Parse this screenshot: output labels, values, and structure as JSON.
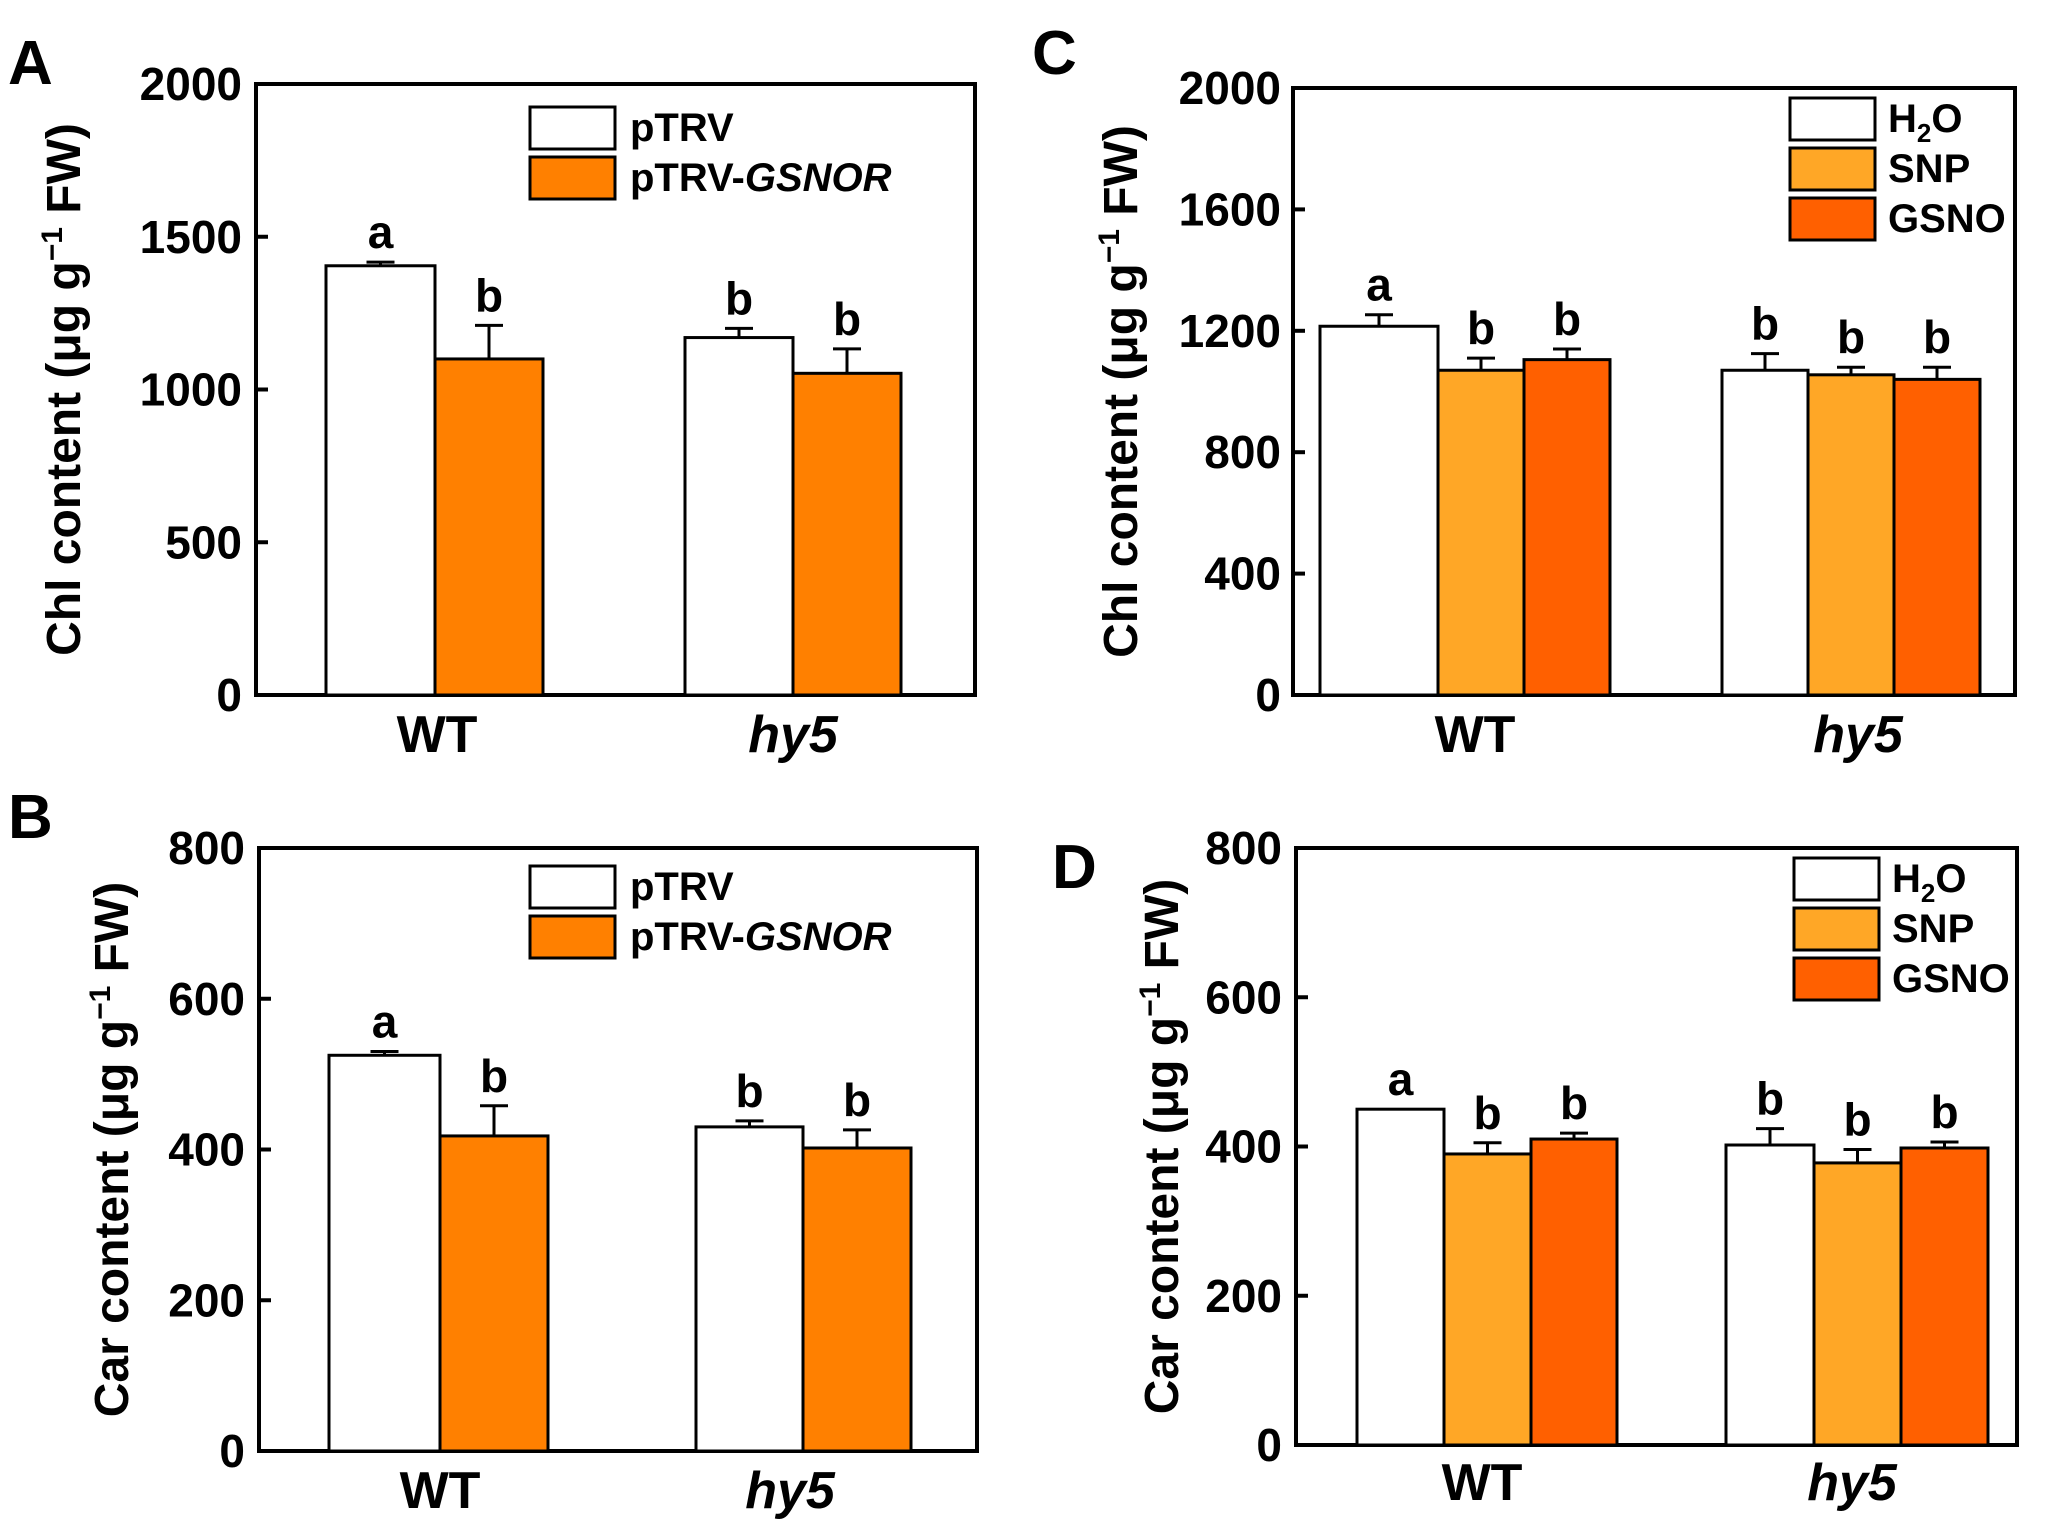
{
  "colors": {
    "white_fill": "#ffffff",
    "orange": "#ff8000",
    "light_orange": "#ffa726",
    "dark_orange": "#ff6000",
    "stroke": "#000000"
  },
  "chart_data": [
    {
      "id": "A",
      "type": "bar",
      "panel_label": "A",
      "ylabel": "Chl content (μg g⁻¹ FW)",
      "ylabel_parts": {
        "main": "Chl content (μg g",
        "sup": "−1",
        "end": " FW)"
      },
      "ylim": [
        0,
        2000
      ],
      "yticks": [
        0,
        500,
        1000,
        1500,
        2000
      ],
      "categories": [
        "WT",
        "hy5"
      ],
      "category_italic": [
        false,
        true
      ],
      "series": [
        {
          "name": "pTRV",
          "legend_parts": [
            {
              "t": "pTRV"
            }
          ],
          "color": "#ffffff",
          "values": [
            1405,
            1170
          ],
          "errors": [
            12,
            30
          ],
          "sig": [
            "a",
            "b"
          ]
        },
        {
          "name": "pTRV-GSNOR",
          "legend_parts": [
            {
              "t": "pTRV-"
            },
            {
              "t": "GSNOR",
              "style": "ital"
            }
          ],
          "color": "#ff8000",
          "values": [
            1100,
            1053
          ],
          "errors": [
            110,
            80
          ],
          "sig": [
            "b",
            "b"
          ]
        }
      ]
    },
    {
      "id": "B",
      "type": "bar",
      "panel_label": "B",
      "ylabel": "Car content (μg g⁻¹ FW)",
      "ylabel_parts": {
        "main": "Car content (μg g",
        "sup": "−1",
        "end": " FW)"
      },
      "ylim": [
        0,
        800
      ],
      "yticks": [
        0,
        200,
        400,
        600,
        800
      ],
      "categories": [
        "WT",
        "hy5"
      ],
      "category_italic": [
        false,
        true
      ],
      "series": [
        {
          "name": "pTRV",
          "legend_parts": [
            {
              "t": "pTRV"
            }
          ],
          "color": "#ffffff",
          "values": [
            525,
            430
          ],
          "errors": [
            5,
            8
          ],
          "sig": [
            "a",
            "b"
          ]
        },
        {
          "name": "pTRV-GSNOR",
          "legend_parts": [
            {
              "t": "pTRV-"
            },
            {
              "t": "GSNOR",
              "style": "ital"
            }
          ],
          "color": "#ff8000",
          "values": [
            418,
            402
          ],
          "errors": [
            40,
            24
          ],
          "sig": [
            "b",
            "b"
          ]
        }
      ]
    },
    {
      "id": "C",
      "type": "bar",
      "panel_label": "C",
      "ylabel": "Chl content (μg g⁻¹ FW)",
      "ylabel_parts": {
        "main": "Chl content (μg g",
        "sup": "−1",
        "end": " FW)"
      },
      "ylim": [
        0,
        2000
      ],
      "yticks": [
        0,
        400,
        800,
        1200,
        1600,
        2000
      ],
      "categories": [
        "WT",
        "hy5"
      ],
      "category_italic": [
        false,
        true
      ],
      "series": [
        {
          "name": "H2O",
          "legend_parts": [
            {
              "t": "H"
            },
            {
              "t": "2",
              "style": "sub"
            },
            {
              "t": "O"
            }
          ],
          "color": "#ffffff",
          "values": [
            1215,
            1070
          ],
          "errors": [
            38,
            55
          ],
          "sig": [
            "a",
            "b"
          ]
        },
        {
          "name": "SNP",
          "legend_parts": [
            {
              "t": "SNP"
            }
          ],
          "color": "#ffa726",
          "values": [
            1070,
            1055
          ],
          "errors": [
            40,
            25
          ],
          "sig": [
            "b",
            "b"
          ]
        },
        {
          "name": "GSNO",
          "legend_parts": [
            {
              "t": "GSNO"
            }
          ],
          "color": "#ff6000",
          "values": [
            1105,
            1040
          ],
          "errors": [
            35,
            40
          ],
          "sig": [
            "b",
            "b"
          ]
        }
      ]
    },
    {
      "id": "D",
      "type": "bar",
      "panel_label": "D",
      "ylabel": "Car content (μg g⁻¹ FW)",
      "ylabel_parts": {
        "main": "Car content (μg g",
        "sup": "−1",
        "end": " FW)"
      },
      "ylim": [
        0,
        800
      ],
      "yticks": [
        0,
        200,
        400,
        600,
        800
      ],
      "categories": [
        "WT",
        "hy5"
      ],
      "category_italic": [
        false,
        true
      ],
      "series": [
        {
          "name": "H2O",
          "legend_parts": [
            {
              "t": "H"
            },
            {
              "t": "2",
              "style": "sub"
            },
            {
              "t": "O"
            }
          ],
          "color": "#ffffff",
          "values": [
            450,
            402
          ],
          "errors": [
            0,
            22
          ],
          "sig": [
            "a",
            "b"
          ]
        },
        {
          "name": "SNP",
          "legend_parts": [
            {
              "t": "SNP"
            }
          ],
          "color": "#ffa726",
          "values": [
            390,
            378
          ],
          "errors": [
            15,
            18
          ],
          "sig": [
            "b",
            "b"
          ]
        },
        {
          "name": "GSNO",
          "legend_parts": [
            {
              "t": "GSNO"
            }
          ],
          "color": "#ff6000",
          "values": [
            410,
            398
          ],
          "errors": [
            8,
            8
          ],
          "sig": [
            "b",
            "b"
          ]
        }
      ]
    }
  ]
}
